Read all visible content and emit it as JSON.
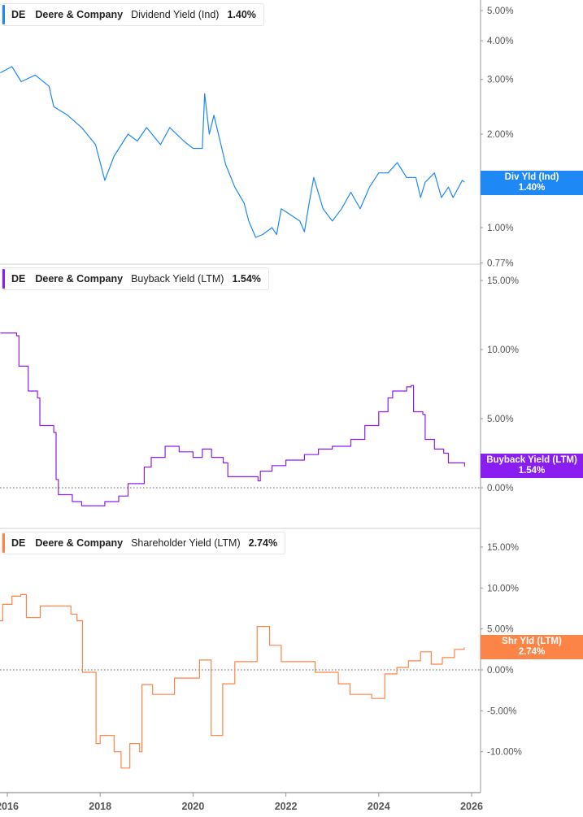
{
  "colors": {
    "div": "#1e88f5",
    "buy": "#8a1ef0",
    "shr": "#fd8447",
    "grid": "#cccccc",
    "axis": "#999999"
  },
  "chart_data": [
    {
      "type": "line",
      "legend": {
        "ticker": "DE",
        "company": "Deere & Company",
        "metric": "Dividend Yield (Ind)",
        "value": "1.40%"
      },
      "tag": {
        "label": "Div Yld (Ind)",
        "value": "1.40%"
      },
      "yscale": "log",
      "ylim": [
        0.77,
        5.0
      ],
      "yticks": [
        {
          "v": 5,
          "label": "5.00%"
        },
        {
          "v": 4,
          "label": "4.00%"
        },
        {
          "v": 3,
          "label": "3.00%"
        },
        {
          "v": 2,
          "label": "2.00%"
        },
        {
          "v": 1,
          "label": "1.00%"
        },
        {
          "v": 0.77,
          "label": "0.77%"
        }
      ],
      "step": false,
      "x": [
        2015.85,
        2016.1,
        2016.3,
        2016.6,
        2016.9,
        2017.0,
        2017.3,
        2017.6,
        2017.9,
        2018.1,
        2018.3,
        2018.6,
        2018.8,
        2019.0,
        2019.3,
        2019.5,
        2019.8,
        2020.0,
        2020.2,
        2020.25,
        2020.35,
        2020.45,
        2020.6,
        2020.7,
        2020.9,
        2021.1,
        2021.2,
        2021.35,
        2021.5,
        2021.7,
        2021.8,
        2021.9,
        2022.1,
        2022.3,
        2022.4,
        2022.5,
        2022.6,
        2022.8,
        2023.0,
        2023.2,
        2023.4,
        2023.6,
        2023.8,
        2024.0,
        2024.2,
        2024.4,
        2024.6,
        2024.8,
        2024.9,
        2025.0,
        2025.2,
        2025.35,
        2025.5,
        2025.6,
        2025.8,
        2025.85
      ],
      "y": [
        3.15,
        3.3,
        2.95,
        3.1,
        2.85,
        2.45,
        2.3,
        2.1,
        1.85,
        1.42,
        1.7,
        2.0,
        1.9,
        2.1,
        1.85,
        2.1,
        1.9,
        1.8,
        1.8,
        2.7,
        2.0,
        2.3,
        1.85,
        1.6,
        1.35,
        1.2,
        1.05,
        0.93,
        0.95,
        1.0,
        0.95,
        1.15,
        1.1,
        1.05,
        0.97,
        1.2,
        1.45,
        1.15,
        1.05,
        1.15,
        1.3,
        1.15,
        1.35,
        1.5,
        1.5,
        1.62,
        1.45,
        1.45,
        1.25,
        1.4,
        1.5,
        1.25,
        1.35,
        1.25,
        1.42,
        1.4
      ]
    },
    {
      "type": "line",
      "legend": {
        "ticker": "DE",
        "company": "Deere & Company",
        "metric": "Buyback Yield (LTM)",
        "value": "1.54%"
      },
      "tag": {
        "label": "Buyback Yield (LTM)",
        "value": "1.54%"
      },
      "yscale": "linear",
      "ylim": [
        -2,
        15
      ],
      "yticks": [
        {
          "v": 15,
          "label": "15.00%"
        },
        {
          "v": 10,
          "label": "10.00%"
        },
        {
          "v": 5,
          "label": "5.00%"
        },
        {
          "v": 0,
          "label": "0.00%"
        }
      ],
      "step": true,
      "x": [
        2015.85,
        2016.2,
        2016.25,
        2016.45,
        2016.65,
        2016.7,
        2017.0,
        2017.05,
        2017.1,
        2017.4,
        2017.6,
        2018.1,
        2018.4,
        2018.6,
        2018.95,
        2019.1,
        2019.4,
        2019.7,
        2020.0,
        2020.2,
        2020.4,
        2020.65,
        2020.75,
        2021.4,
        2021.45,
        2021.7,
        2022.0,
        2022.4,
        2022.7,
        2023.0,
        2023.4,
        2023.7,
        2024.0,
        2024.2,
        2024.3,
        2024.6,
        2024.7,
        2024.75,
        2024.95,
        2025.0,
        2025.2,
        2025.4,
        2025.5,
        2025.85
      ],
      "y": [
        11.2,
        11.0,
        8.8,
        7.0,
        6.5,
        4.5,
        4.0,
        0.6,
        -0.5,
        -1.0,
        -1.3,
        -1.0,
        -0.6,
        0.3,
        1.5,
        2.2,
        3.0,
        2.6,
        2.2,
        2.8,
        2.2,
        1.8,
        0.8,
        0.5,
        1.2,
        1.6,
        2.0,
        2.4,
        2.8,
        3.0,
        3.5,
        4.5,
        5.5,
        6.5,
        7.0,
        7.3,
        7.4,
        5.5,
        5.3,
        3.5,
        2.8,
        2.5,
        1.8,
        1.54
      ]
    },
    {
      "type": "line",
      "legend": {
        "ticker": "DE",
        "company": "Deere & Company",
        "metric": "Shareholder Yield (LTM)",
        "value": "2.74%"
      },
      "tag": {
        "label": "Shr Yld (LTM)",
        "value": "2.74%"
      },
      "yscale": "linear",
      "ylim": [
        -15,
        15
      ],
      "yticks": [
        {
          "v": 15,
          "label": "15.00%"
        },
        {
          "v": 10,
          "label": "10.00%"
        },
        {
          "v": 5,
          "label": "5.00%"
        },
        {
          "v": 0,
          "label": "0.00%"
        },
        {
          "v": -5,
          "label": "-5.00%"
        },
        {
          "v": -10,
          "label": "-10.00%"
        }
      ],
      "step": true,
      "x": [
        2015.84,
        2015.9,
        2016.1,
        2016.29,
        2016.41,
        2016.71,
        2017.37,
        2017.5,
        2017.62,
        2017.91,
        2018.0,
        2018.3,
        2018.45,
        2018.64,
        2018.85,
        2018.9,
        2019.13,
        2019.6,
        2020.14,
        2020.39,
        2020.64,
        2020.9,
        2021.38,
        2021.65,
        2021.9,
        2022.63,
        2023.13,
        2023.38,
        2023.85,
        2024.13,
        2024.39,
        2024.64,
        2024.9,
        2025.13,
        2025.37,
        2025.63,
        2025.84
      ],
      "y": [
        6.0,
        8.0,
        9.0,
        9.2,
        6.4,
        7.8,
        6.8,
        6.0,
        -0.3,
        -9.0,
        -8.0,
        -10.0,
        -12.0,
        -9.0,
        -10.0,
        -1.8,
        -3.0,
        -1.0,
        1.2,
        -8.0,
        -1.7,
        1.0,
        5.3,
        3.0,
        1.0,
        -0.3,
        -1.7,
        -3.0,
        -3.5,
        -0.5,
        0.3,
        1.1,
        2.2,
        0.7,
        1.5,
        2.5,
        2.74
      ]
    }
  ],
  "xaxis": {
    "ticks": [
      {
        "v": 2016,
        "label": "2016"
      },
      {
        "v": 2018,
        "label": "2018"
      },
      {
        "v": 2020,
        "label": "2020"
      },
      {
        "v": 2022,
        "label": "2022"
      },
      {
        "v": 2024,
        "label": "2024"
      },
      {
        "v": 2026,
        "label": "2026"
      }
    ]
  }
}
